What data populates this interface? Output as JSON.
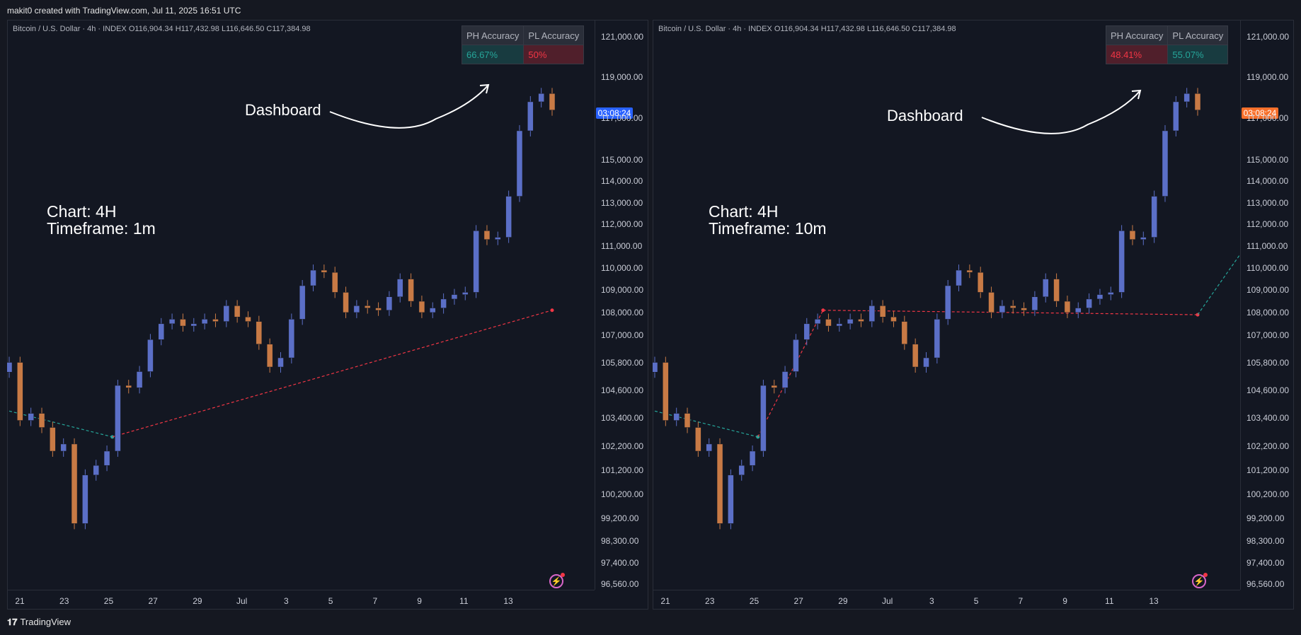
{
  "header": {
    "text": "makit0 created with TradingView.com, Jul 11, 2025 16:51 UTC"
  },
  "footer": {
    "logo_glyph": "𝟏𝟕",
    "brand": "TradingView"
  },
  "symbol_line": {
    "name": "Bitcoin / U.S. Dollar · 4h · INDEX",
    "o_label": "O",
    "o": "116,904.34",
    "h_label": "H",
    "h": "117,432.98",
    "l_label": "L",
    "l": "116,646.50",
    "c_label": "C",
    "c": "117,384.98"
  },
  "colors": {
    "background": "#131722",
    "bull": "#5b6fc7",
    "bear": "#c87a45",
    "ph_line": "#f23645",
    "pl_line": "#26a69a",
    "positive": "#26a69a",
    "negative": "#f23645"
  },
  "dashboard_label": "Dashboard",
  "panels": [
    {
      "chart_line": "Chart: 4H",
      "timeframe_line": "Timeframe: 1m",
      "ph_header": "PH Accuracy",
      "pl_header": "PL Accuracy",
      "ph_value": "66.67%",
      "pl_value": "50%",
      "price_tag": "03:08:24",
      "price_tag_color": "#2962ff"
    },
    {
      "chart_line": "Chart: 4H",
      "timeframe_line": "Timeframe: 10m",
      "ph_header": "PH Accuracy",
      "pl_header": "PL Accuracy",
      "ph_value": "48.41%",
      "pl_value": "55.07%",
      "price_tag": "03:08:24",
      "price_tag_color": "#f7702b"
    }
  ],
  "chart_data": {
    "type": "line",
    "x_ticks": [
      "21",
      "23",
      "25",
      "27",
      "29",
      "Jul",
      "3",
      "5",
      "7",
      "9",
      "11",
      "13"
    ],
    "y_ticks": [
      "121,000.00",
      "119,000.00",
      "117,000.00",
      "115,000.00",
      "114,000.00",
      "113,000.00",
      "112,000.00",
      "111,000.00",
      "110,000.00",
      "109,000.00",
      "108,000.00",
      "107,000.00",
      "105,800.00",
      "104,600.00",
      "103,400.00",
      "102,200.00",
      "101,200.00",
      "100,200.00",
      "99,200.00",
      "98,300.00",
      "97,400.00",
      "96,560.00"
    ],
    "y_scale": "log",
    "ylim": [
      96560,
      121000
    ],
    "price_series_approx": [
      105800,
      103300,
      103600,
      103000,
      102000,
      102300,
      99000,
      101000,
      101400,
      102000,
      104800,
      104700,
      105400,
      106800,
      107500,
      107700,
      107400,
      107500,
      107700,
      107600,
      108300,
      107800,
      107600,
      106600,
      105600,
      106000,
      107700,
      109200,
      109900,
      109800,
      108900,
      108000,
      108300,
      108200,
      108100,
      108700,
      109500,
      108500,
      108000,
      108200,
      108600,
      108800,
      108900,
      111700,
      111300,
      111400,
      113300,
      116400,
      117800,
      118200,
      117400
    ],
    "pivot_lines": [
      {
        "panel": 0,
        "kind": "PL",
        "points": [
          [
            0,
            103700
          ],
          [
            19,
            102600
          ]
        ]
      },
      {
        "panel": 0,
        "kind": "PH",
        "points": [
          [
            19,
            102600
          ],
          [
            100,
            108100
          ]
        ]
      },
      {
        "panel": 1,
        "kind": "PL",
        "points": [
          [
            0,
            103700
          ],
          [
            19,
            102600
          ]
        ]
      },
      {
        "panel": 1,
        "kind": "PH",
        "points": [
          [
            19,
            102600
          ],
          [
            31,
            108100
          ]
        ]
      },
      {
        "panel": 1,
        "kind": "PH",
        "points": [
          [
            31,
            108100
          ],
          [
            100,
            107900
          ]
        ]
      },
      {
        "panel": 1,
        "kind": "PL",
        "points": [
          [
            100,
            107900
          ],
          [
            130,
            118700
          ]
        ]
      }
    ]
  }
}
